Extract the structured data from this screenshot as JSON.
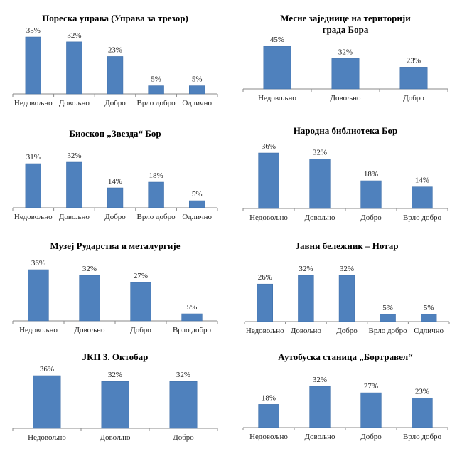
{
  "chart_data": [
    {
      "type": "bar",
      "title": "Пореска управа (Управа за трезор)",
      "categories": [
        "Недовољно",
        "Довољно",
        "Добро",
        "Врло добро",
        "Одлично"
      ],
      "values": [
        35,
        32,
        23,
        5,
        5
      ],
      "labels": [
        "35%",
        "32%",
        "23%",
        "5%",
        "5%"
      ],
      "color": "#4f81bd"
    },
    {
      "type": "bar",
      "title": "Месне заједнице на територији града Бора",
      "categories": [
        "Недовољно",
        "Довољно",
        "Добро"
      ],
      "values": [
        45,
        32,
        23
      ],
      "labels": [
        "45%",
        "32%",
        "23%"
      ],
      "color": "#4f81bd"
    },
    {
      "type": "bar",
      "title": "Биоскоп „Звезда“ Бор",
      "categories": [
        "Недовољно",
        "Довољно",
        "Добро",
        "Врло добро",
        "Одлично"
      ],
      "values": [
        31,
        32,
        14,
        18,
        5
      ],
      "labels": [
        "31%",
        "32%",
        "14%",
        "18%",
        "5%"
      ],
      "color": "#4f81bd"
    },
    {
      "type": "bar",
      "title": "Народна библиотека Бор",
      "categories": [
        "Недовољно",
        "Довољно",
        "Добро",
        "Врло добро"
      ],
      "values": [
        36,
        32,
        18,
        14
      ],
      "labels": [
        "36%",
        "32%",
        "18%",
        "14%"
      ],
      "color": "#4f81bd"
    },
    {
      "type": "bar",
      "title": "Музеј Рударства и металургије",
      "categories": [
        "Недовољно",
        "Довољно",
        "Добро",
        "Врло добро"
      ],
      "values": [
        36,
        32,
        27,
        5
      ],
      "labels": [
        "36%",
        "32%",
        "27%",
        "5%"
      ],
      "color": "#4f81bd"
    },
    {
      "type": "bar",
      "title": "Јавни бележник – Нотар",
      "categories": [
        "Недовољно",
        "Довољно",
        "Добро",
        "Врло добро",
        "Одлично"
      ],
      "values": [
        26,
        32,
        32,
        5,
        5
      ],
      "labels": [
        "26%",
        "32%",
        "32%",
        "5%",
        "5%"
      ],
      "color": "#4f81bd"
    },
    {
      "type": "bar",
      "title": "ЈКП 3. Октобар",
      "categories": [
        "Недовољно",
        "Довољно",
        "Добро"
      ],
      "values": [
        36,
        32,
        32
      ],
      "labels": [
        "36%",
        "32%",
        "32%"
      ],
      "color": "#4f81bd"
    },
    {
      "type": "bar",
      "title": "Аутобуска станица „Бортравел“",
      "categories": [
        "Недовољно",
        "Довољно",
        "Добро",
        "Врло добро"
      ],
      "values": [
        18,
        32,
        27,
        23
      ],
      "labels": [
        "18%",
        "32%",
        "27%",
        "23%"
      ],
      "color": "#4f81bd"
    }
  ]
}
